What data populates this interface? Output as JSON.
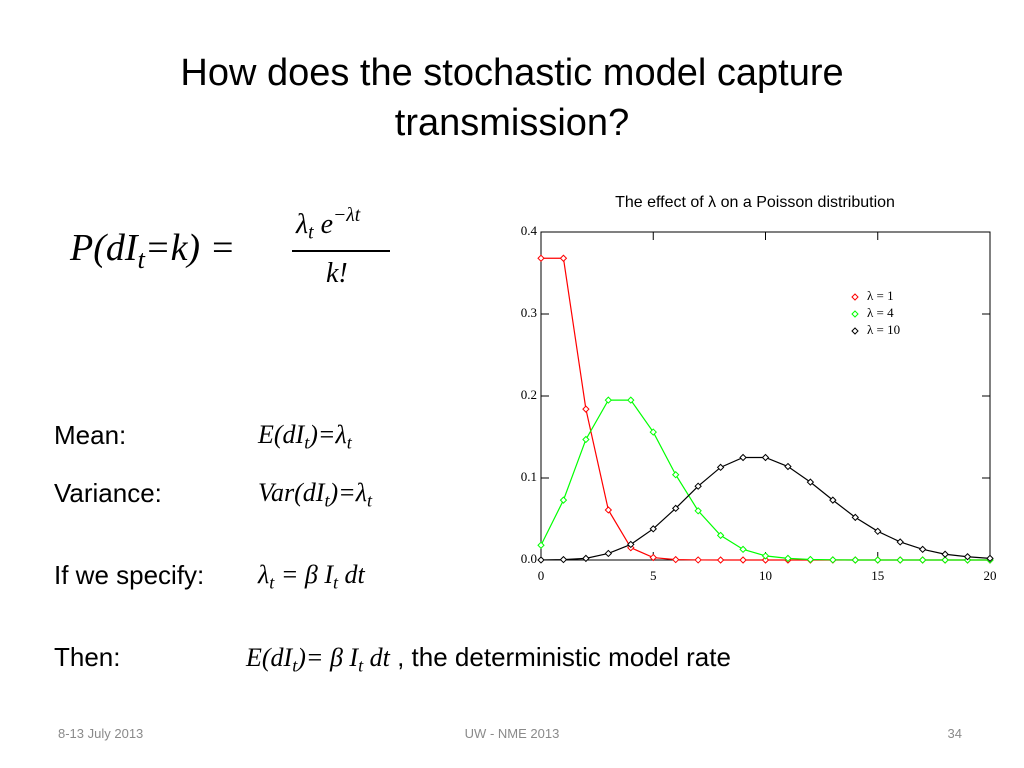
{
  "title": "How does the stochastic model capture transmission?",
  "formula": {
    "lhs": "P(dI",
    "lhs_sub": "t",
    "lhs_rest": "=k) =",
    "num_base": "λ",
    "num_sub": "t",
    "num_e": "e",
    "num_exp": "−λt",
    "den": "k!"
  },
  "rows": [
    {
      "label": "Mean:",
      "expr": [
        "E(dI",
        "t",
        ")=λ",
        "t"
      ]
    },
    {
      "label": "Variance:",
      "expr": [
        "Var(dI",
        "t",
        ")=λ",
        "t"
      ]
    },
    {
      "label": "If we specify:",
      "expr": [
        "λ",
        "t",
        " = β I",
        "t",
        " dt"
      ]
    },
    {
      "label": "Then:",
      "expr": [
        "E(dI",
        "t",
        ")= β I",
        "t",
        " dt"
      ],
      "note": ", the deterministic model rate"
    }
  ],
  "footer": {
    "date": "8-13 July 2013",
    "event": "UW - NME 2013",
    "page": "34"
  },
  "chart_data": {
    "type": "line",
    "title": "The effect of λ on a Poisson distribution",
    "x": [
      0,
      1,
      2,
      3,
      4,
      5,
      6,
      7,
      8,
      9,
      10,
      11,
      12,
      13,
      14,
      15,
      16,
      17,
      18,
      19,
      20
    ],
    "series": [
      {
        "name": "λ = 1",
        "color": "#ff0000",
        "values": [
          0.368,
          0.368,
          0.184,
          0.061,
          0.015,
          0.003,
          0.0005,
          0.0001,
          0,
          0,
          0,
          0,
          0,
          0,
          0,
          0,
          0,
          0,
          0,
          0,
          0
        ]
      },
      {
        "name": "λ = 4",
        "color": "#00ff00",
        "values": [
          0.018,
          0.073,
          0.147,
          0.195,
          0.195,
          0.156,
          0.104,
          0.06,
          0.03,
          0.013,
          0.005,
          0.002,
          0.0006,
          0.0002,
          0,
          0,
          0,
          0,
          0,
          0,
          0
        ]
      },
      {
        "name": "λ = 10",
        "color": "#000000",
        "values": [
          5e-05,
          0.0005,
          0.002,
          0.008,
          0.019,
          0.038,
          0.063,
          0.09,
          0.113,
          0.125,
          0.125,
          0.114,
          0.095,
          0.073,
          0.052,
          0.035,
          0.022,
          0.013,
          0.007,
          0.004,
          0.002
        ]
      }
    ],
    "xlim": [
      0,
      20
    ],
    "xticks": [
      0,
      5,
      10,
      15,
      20
    ],
    "ylim": [
      0,
      0.4
    ],
    "yticks": [
      {
        "value": 0,
        "label": "0.0"
      },
      0.1,
      0.2,
      0.3,
      0.4
    ],
    "legend": "upper right"
  }
}
